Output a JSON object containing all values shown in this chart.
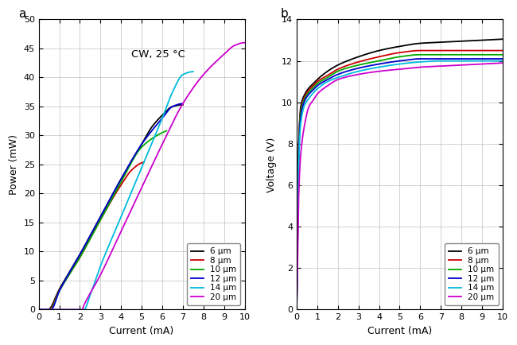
{
  "panel_a": {
    "title": "CW, 25 °C",
    "xlabel": "Current (mA)",
    "ylabel": "Power (mW)",
    "xlim": [
      0,
      10
    ],
    "ylim": [
      0,
      50
    ],
    "xticks": [
      0,
      1,
      2,
      3,
      4,
      5,
      6,
      7,
      8,
      9,
      10
    ],
    "yticks": [
      0,
      5,
      10,
      15,
      20,
      25,
      30,
      35,
      40,
      45,
      50
    ],
    "series": [
      {
        "label": "6 μm",
        "color": "#000000",
        "pts_i": [
          0,
          0.45,
          1.0,
          2.0,
          3.0,
          4.0,
          5.0,
          5.5,
          6.0,
          6.5,
          7.0
        ],
        "pts_p": [
          0,
          0,
          3.5,
          9.5,
          16.0,
          22.5,
          28.5,
          31.5,
          33.5,
          35.0,
          35.3
        ]
      },
      {
        "label": "8 μm",
        "color": "#cc0000",
        "pts_i": [
          0,
          0.5,
          1.0,
          2.0,
          3.0,
          4.0,
          4.5,
          5.0,
          5.1
        ],
        "pts_p": [
          0,
          0,
          3.3,
          9.0,
          15.5,
          21.5,
          24.0,
          25.3,
          25.4
        ]
      },
      {
        "label": "10 μm",
        "color": "#00aa00",
        "pts_i": [
          0,
          0.55,
          1.0,
          2.0,
          3.0,
          4.0,
          5.0,
          6.0,
          6.2
        ],
        "pts_p": [
          0,
          0,
          3.2,
          9.0,
          15.5,
          22.0,
          28.0,
          30.5,
          30.8
        ]
      },
      {
        "label": "12 μm",
        "color": "#0000cc",
        "pts_i": [
          0,
          0.6,
          1.0,
          2.0,
          3.0,
          4.0,
          5.0,
          6.0,
          6.5,
          7.0
        ],
        "pts_p": [
          0,
          0,
          3.2,
          9.5,
          16.0,
          22.5,
          28.5,
          33.0,
          35.0,
          35.5
        ]
      },
      {
        "label": "14 μm",
        "color": "#00bbdd",
        "pts_i": [
          0,
          2.2,
          2.5,
          3.0,
          4.0,
          5.0,
          6.0,
          6.5,
          7.0,
          7.5
        ],
        "pts_p": [
          0,
          0,
          2.5,
          7.5,
          16.0,
          24.5,
          33.0,
          37.5,
          40.5,
          41.0
        ]
      },
      {
        "label": "20 μm",
        "color": "#cc00cc",
        "pts_i": [
          0,
          2.1,
          2.2,
          3.0,
          4.0,
          5.0,
          6.0,
          7.0,
          8.0,
          9.0,
          9.5,
          10.0
        ],
        "pts_p": [
          0,
          0,
          0.8,
          6.0,
          13.5,
          21.0,
          28.5,
          35.5,
          40.5,
          44.0,
          45.5,
          46.0
        ]
      }
    ]
  },
  "panel_b": {
    "xlabel": "Current (mA)",
    "ylabel": "Voltage (V)",
    "xlim": [
      0,
      10
    ],
    "ylim": [
      0,
      14
    ],
    "xticks": [
      0,
      1,
      2,
      3,
      4,
      5,
      6,
      7,
      8,
      9,
      10
    ],
    "yticks": [
      0,
      2,
      4,
      6,
      8,
      10,
      12,
      14
    ],
    "series": [
      {
        "label": "6 μm",
        "color": "#000000",
        "pts_i": [
          0,
          0.05,
          0.1,
          0.2,
          0.4,
          0.6,
          0.8,
          1.0,
          1.5,
          2.0,
          3.0,
          4.0,
          5.0,
          6.0,
          7.0,
          8.0,
          9.0,
          10.0
        ],
        "pts_v": [
          0,
          4.5,
          8.0,
          9.8,
          10.4,
          10.7,
          10.9,
          11.1,
          11.5,
          11.8,
          12.2,
          12.5,
          12.7,
          12.85,
          12.9,
          12.95,
          13.0,
          13.05
        ]
      },
      {
        "label": "8 μm",
        "color": "#cc0000",
        "pts_i": [
          0,
          0.05,
          0.1,
          0.2,
          0.4,
          0.6,
          0.8,
          1.0,
          1.5,
          2.0,
          3.0,
          4.0,
          5.0,
          6.0,
          7.0,
          8.0,
          9.0,
          10.0
        ],
        "pts_v": [
          0,
          4.2,
          7.8,
          9.6,
          10.3,
          10.6,
          10.8,
          11.0,
          11.3,
          11.6,
          11.95,
          12.2,
          12.4,
          12.5,
          12.5,
          12.5,
          12.5,
          12.5
        ]
      },
      {
        "label": "10 μm",
        "color": "#00aa00",
        "pts_i": [
          0,
          0.05,
          0.1,
          0.2,
          0.4,
          0.6,
          0.8,
          1.0,
          1.5,
          2.0,
          3.0,
          4.0,
          5.0,
          6.0,
          7.0,
          8.0,
          9.0,
          10.0
        ],
        "pts_v": [
          0,
          4.0,
          7.6,
          9.5,
          10.2,
          10.5,
          10.7,
          10.9,
          11.2,
          11.5,
          11.8,
          12.0,
          12.2,
          12.3,
          12.3,
          12.3,
          12.3,
          12.3
        ]
      },
      {
        "label": "12 μm",
        "color": "#0000cc",
        "pts_i": [
          0,
          0.05,
          0.1,
          0.2,
          0.4,
          0.6,
          0.8,
          1.0,
          1.5,
          2.0,
          3.0,
          4.0,
          5.0,
          6.0,
          7.0,
          8.0,
          9.0,
          10.0
        ],
        "pts_v": [
          0,
          3.8,
          7.4,
          9.3,
          10.1,
          10.4,
          10.6,
          10.8,
          11.1,
          11.35,
          11.65,
          11.85,
          12.0,
          12.1,
          12.1,
          12.1,
          12.1,
          12.1
        ]
      },
      {
        "label": "14 μm",
        "color": "#00bbdd",
        "pts_i": [
          0,
          0.05,
          0.1,
          0.2,
          0.4,
          0.6,
          0.8,
          1.0,
          1.5,
          2.0,
          3.0,
          4.0,
          5.0,
          6.0,
          7.0,
          8.0,
          9.0,
          10.0
        ],
        "pts_v": [
          0,
          3.5,
          7.0,
          9.0,
          9.9,
          10.2,
          10.45,
          10.65,
          11.0,
          11.2,
          11.5,
          11.7,
          11.85,
          11.95,
          12.0,
          12.0,
          12.0,
          12.0
        ]
      },
      {
        "label": "20 μm",
        "color": "#cc00cc",
        "pts_i": [
          0,
          0.05,
          0.1,
          0.2,
          0.4,
          0.6,
          0.8,
          1.0,
          1.5,
          2.0,
          3.0,
          4.0,
          5.0,
          6.0,
          7.0,
          8.0,
          9.0,
          10.0
        ],
        "pts_v": [
          0,
          2.5,
          5.5,
          7.5,
          9.0,
          9.8,
          10.1,
          10.4,
          10.8,
          11.1,
          11.35,
          11.5,
          11.6,
          11.7,
          11.75,
          11.8,
          11.85,
          11.9
        ]
      }
    ]
  },
  "label_a": "a",
  "label_b": "b"
}
